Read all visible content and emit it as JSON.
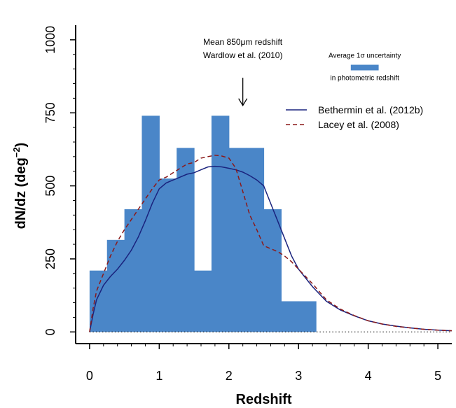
{
  "chart_data": {
    "type": "bar",
    "xlabel": "Redshift",
    "ylabel_main": "dN/dz (deg",
    "ylabel_exp": "−2",
    "ylabel_close": ")",
    "xlim": [
      -0.2,
      5.2
    ],
    "ylim": [
      -40,
      1050
    ],
    "xticks": [
      0,
      1,
      2,
      3,
      4,
      5
    ],
    "yticks": [
      0,
      250,
      500,
      750,
      1000
    ],
    "bin_edges": [
      0,
      0.25,
      0.5,
      0.75,
      1.0,
      1.25,
      1.5,
      1.75,
      2.0,
      2.25,
      2.5,
      2.75,
      3.0,
      3.25
    ],
    "values": [
      210,
      315,
      420,
      740,
      525,
      630,
      210,
      740,
      630,
      630,
      420,
      105,
      105
    ],
    "bar_color": "#4a86c8",
    "zero_line": "dotted",
    "series": [
      {
        "name": "Bethermin et al. (2012b)",
        "color": "#1a237e",
        "dash": "solid",
        "x": [
          0,
          0.05,
          0.1,
          0.2,
          0.3,
          0.4,
          0.5,
          0.6,
          0.7,
          0.8,
          0.9,
          1.0,
          1.1,
          1.2,
          1.3,
          1.4,
          1.5,
          1.6,
          1.7,
          1.8,
          1.9,
          2.0,
          2.1,
          2.2,
          2.3,
          2.4,
          2.5,
          2.6,
          2.7,
          2.8,
          2.9,
          3.0,
          3.2,
          3.4,
          3.6,
          3.8,
          4.0,
          4.2,
          4.4,
          4.6,
          4.8,
          5.0,
          5.2
        ],
        "y": [
          0,
          60,
          110,
          160,
          190,
          215,
          245,
          280,
          325,
          380,
          440,
          490,
          510,
          520,
          530,
          540,
          545,
          555,
          565,
          567,
          565,
          560,
          555,
          547,
          535,
          520,
          500,
          440,
          380,
          320,
          260,
          215,
          155,
          105,
          75,
          55,
          38,
          27,
          20,
          14,
          9,
          6,
          4
        ]
      },
      {
        "name": "Lacey et al. (2008)",
        "color": "#8b1a1a",
        "dash": "dashed",
        "x": [
          0,
          0.05,
          0.1,
          0.2,
          0.3,
          0.4,
          0.5,
          0.6,
          0.7,
          0.8,
          0.9,
          1.0,
          1.1,
          1.2,
          1.3,
          1.4,
          1.5,
          1.6,
          1.7,
          1.8,
          1.9,
          2.0,
          2.1,
          2.2,
          2.3,
          2.4,
          2.5,
          2.6,
          2.7,
          2.8,
          2.9,
          3.0,
          3.2,
          3.4,
          3.6,
          3.8,
          4.0,
          4.2,
          4.4,
          4.6,
          4.8,
          5.0,
          5.2
        ],
        "y": [
          0,
          80,
          140,
          200,
          260,
          310,
          350,
          385,
          420,
          455,
          490,
          520,
          530,
          545,
          560,
          575,
          580,
          595,
          600,
          605,
          602,
          595,
          560,
          480,
          400,
          350,
          295,
          285,
          275,
          260,
          240,
          215,
          165,
          110,
          78,
          56,
          38,
          27,
          19,
          14,
          9,
          6,
          4
        ]
      }
    ],
    "annotation": {
      "line1": "Mean 850μm redshift",
      "line2": "Wardlow et al. (2010)",
      "arrow_x": 2.2,
      "arrow_y_from": 870,
      "arrow_y_to": 775
    },
    "uncertainty": {
      "label_top": "Average 1σ uncertainty",
      "label_bottom": "in photometric redshift",
      "xmin": 3.75,
      "xmax": 4.15,
      "y": 905
    },
    "legend_position": "top-right"
  }
}
